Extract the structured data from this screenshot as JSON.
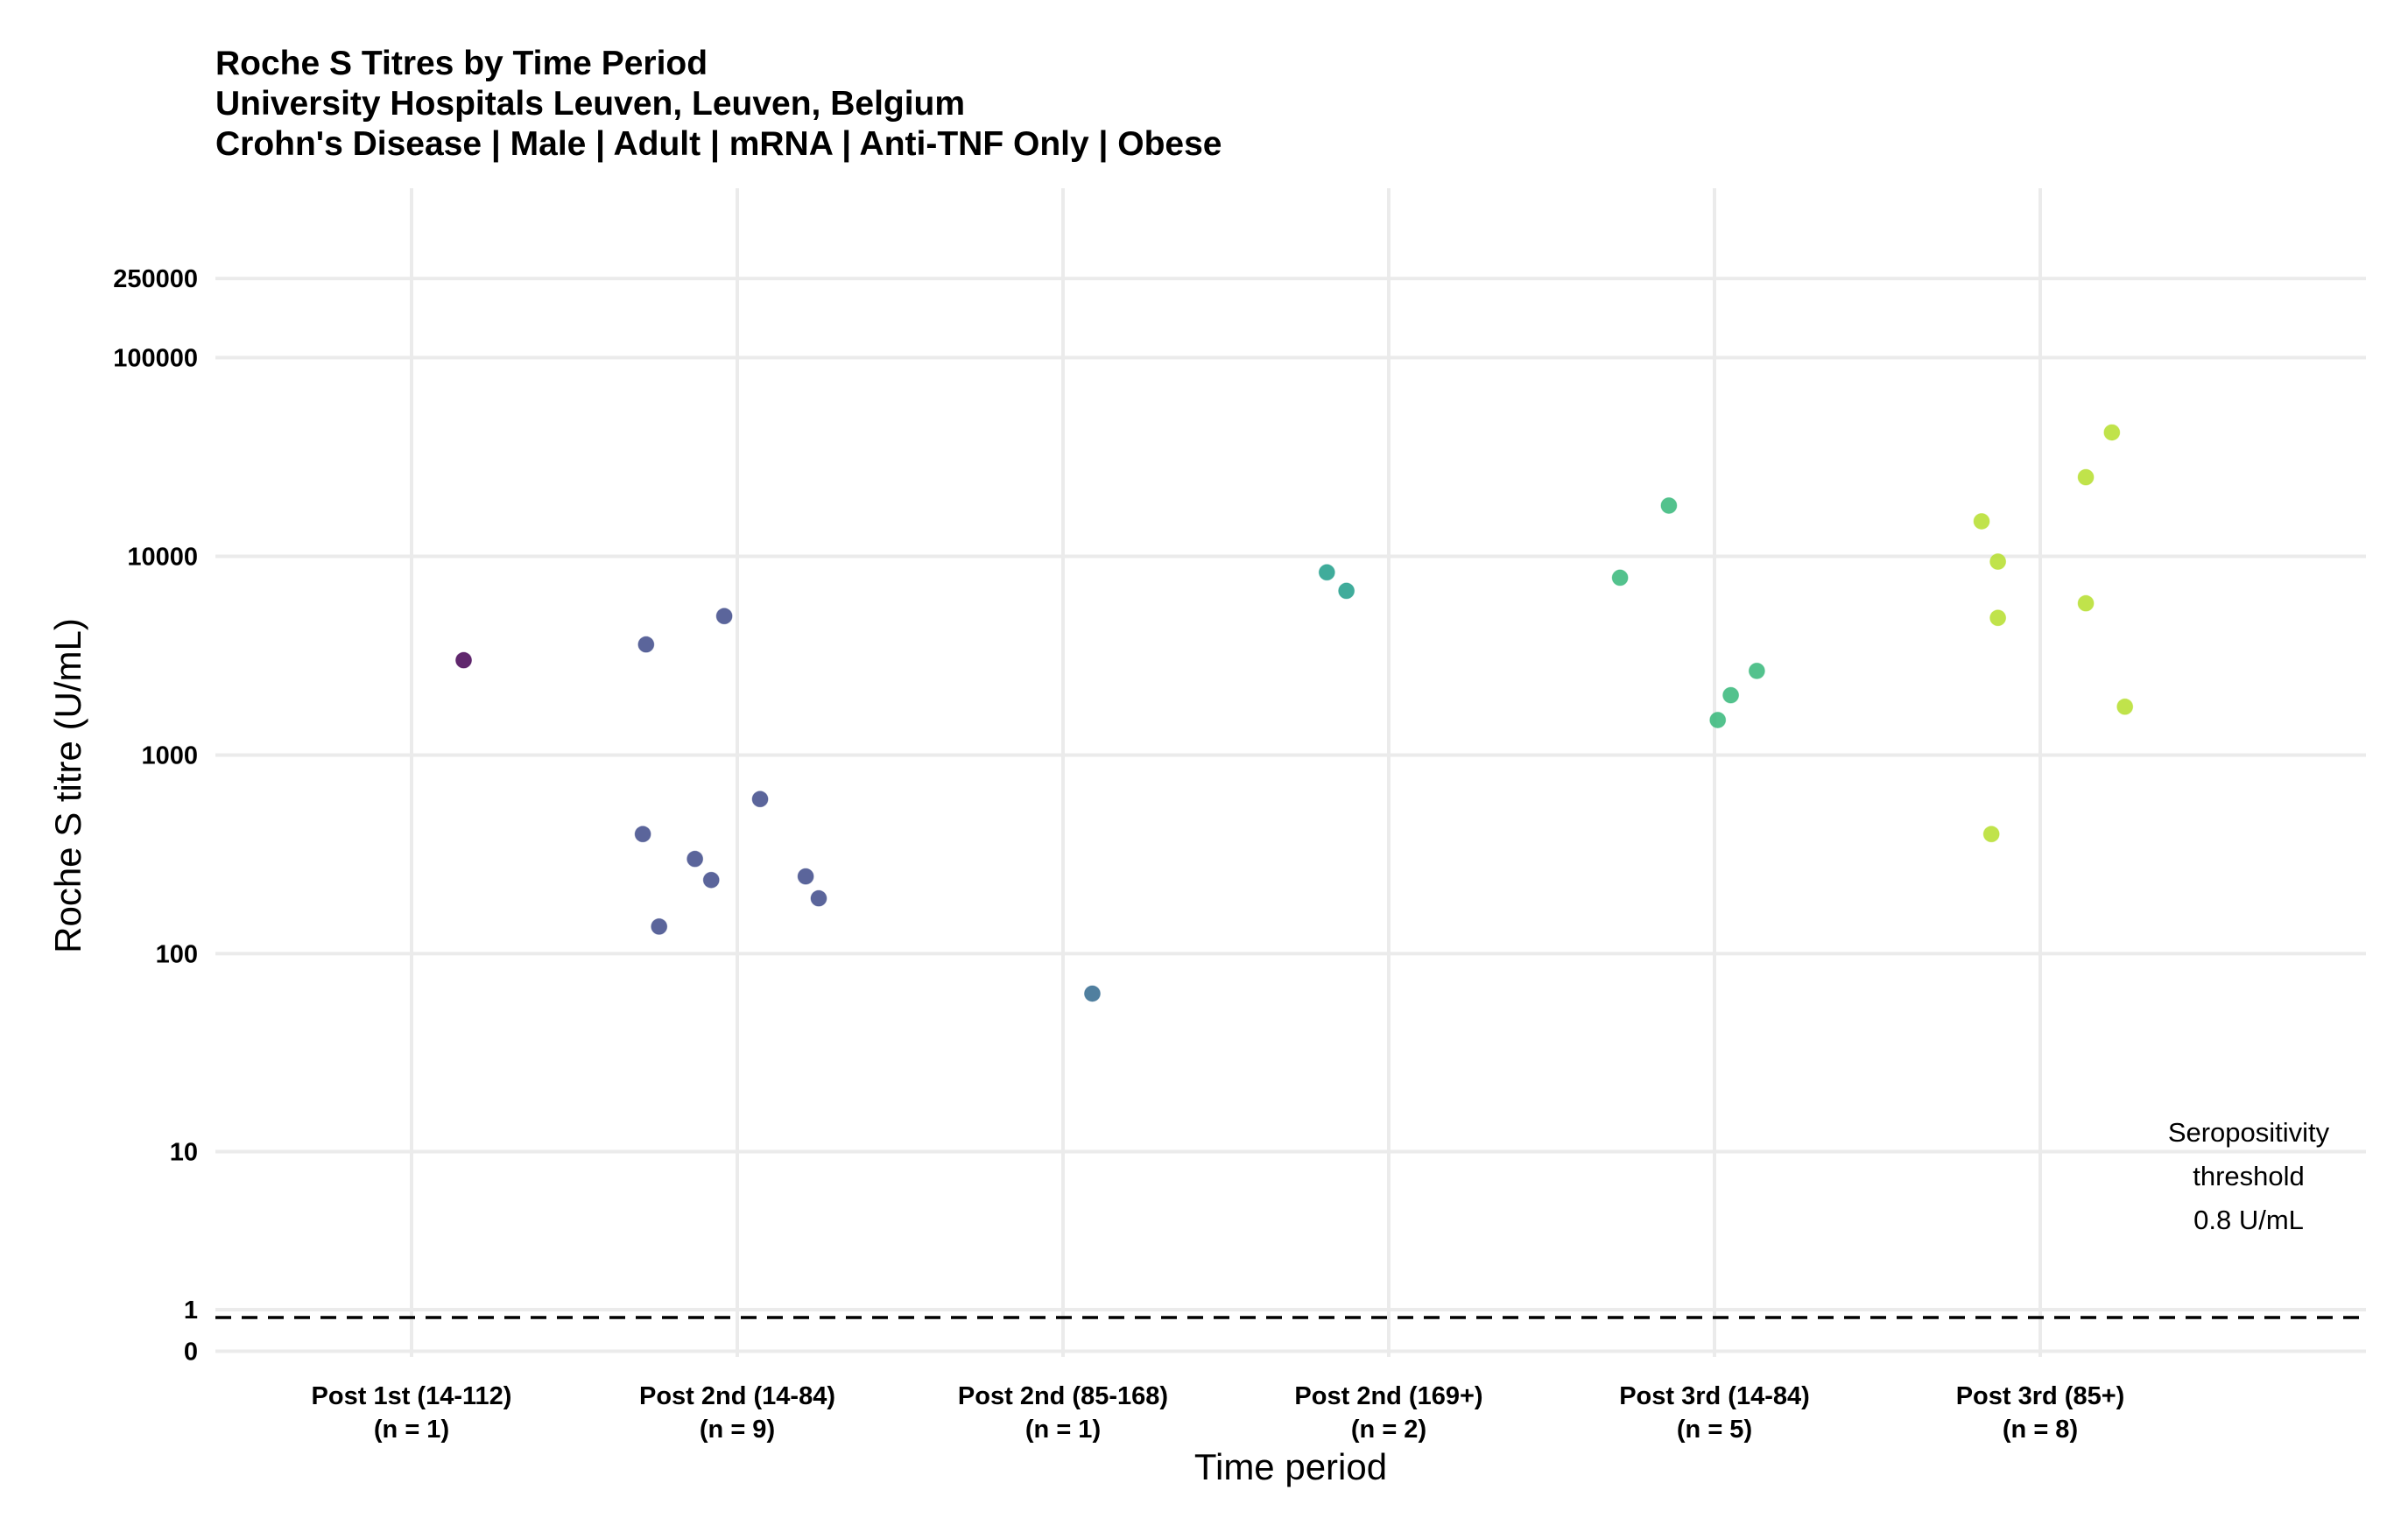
{
  "chart_data": {
    "type": "scatter",
    "title": "Roche S Titres by Time Period",
    "subtitle_lines": [
      "University Hospitals Leuven, Leuven, Belgium",
      "Crohn's Disease | Male | Adult | mRNA | Anti-TNF Only | Obese"
    ],
    "xlabel": "Time period",
    "ylabel": "Roche S titre (U/mL)",
    "y_scale": "pseudo-log",
    "ylim": [
      0,
      300000
    ],
    "y_ticks": [
      {
        "value": 0,
        "label": "0"
      },
      {
        "value": 1,
        "label": "1"
      },
      {
        "value": 10,
        "label": "10"
      },
      {
        "value": 100,
        "label": "100"
      },
      {
        "value": 1000,
        "label": "1000"
      },
      {
        "value": 10000,
        "label": "10000"
      },
      {
        "value": 100000,
        "label": "100000"
      },
      {
        "value": 250000,
        "label": "250000"
      }
    ],
    "categories": [
      {
        "label": "Post 1st (14-112)",
        "n_label": "(n = 1)",
        "color": "#440154"
      },
      {
        "label": "Post 2nd (14-84)",
        "n_label": "(n = 9)",
        "color": "#3E4A89"
      },
      {
        "label": "Post 2nd (85-168)",
        "n_label": "(n = 1)",
        "color": "#31688E"
      },
      {
        "label": "Post 2nd (169+)",
        "n_label": "(n = 2)",
        "color": "#1F9E89"
      },
      {
        "label": "Post 3rd (14-84)",
        "n_label": "(n = 5)",
        "color": "#35B779"
      },
      {
        "label": "Post 3rd (85+)",
        "n_label": "(n = 8)",
        "color": "#B5DE2B"
      }
    ],
    "points": [
      {
        "category": 0,
        "jitter": 0.16,
        "y": 3000
      },
      {
        "category": 1,
        "jitter": -0.28,
        "y": 3600
      },
      {
        "category": 1,
        "jitter": -0.04,
        "y": 5000
      },
      {
        "category": 1,
        "jitter": 0.07,
        "y": 600
      },
      {
        "category": 1,
        "jitter": -0.29,
        "y": 400
      },
      {
        "category": 1,
        "jitter": -0.13,
        "y": 300
      },
      {
        "category": 1,
        "jitter": -0.08,
        "y": 235
      },
      {
        "category": 1,
        "jitter": 0.21,
        "y": 245
      },
      {
        "category": 1,
        "jitter": 0.25,
        "y": 190
      },
      {
        "category": 1,
        "jitter": -0.24,
        "y": 137
      },
      {
        "category": 2,
        "jitter": 0.09,
        "y": 63
      },
      {
        "category": 3,
        "jitter": -0.19,
        "y": 8300
      },
      {
        "category": 3,
        "jitter": -0.13,
        "y": 6700
      },
      {
        "category": 4,
        "jitter": -0.29,
        "y": 7800
      },
      {
        "category": 4,
        "jitter": -0.14,
        "y": 18000
      },
      {
        "category": 4,
        "jitter": 0.05,
        "y": 2000
      },
      {
        "category": 4,
        "jitter": 0.13,
        "y": 2650
      },
      {
        "category": 4,
        "jitter": 0.01,
        "y": 1500
      },
      {
        "category": 5,
        "jitter": -0.18,
        "y": 15000
      },
      {
        "category": 5,
        "jitter": -0.13,
        "y": 9400
      },
      {
        "category": 5,
        "jitter": -0.13,
        "y": 4900
      },
      {
        "category": 5,
        "jitter": -0.15,
        "y": 400
      },
      {
        "category": 5,
        "jitter": 0.14,
        "y": 25000
      },
      {
        "category": 5,
        "jitter": 0.22,
        "y": 42000
      },
      {
        "category": 5,
        "jitter": 0.14,
        "y": 5800
      },
      {
        "category": 5,
        "jitter": 0.26,
        "y": 1750
      }
    ],
    "threshold": {
      "value": 0.8,
      "style": "dashed",
      "label_lines": [
        "Seropositivity",
        "threshold",
        "0.8 U/mL"
      ]
    },
    "grid": true,
    "legend": "none"
  }
}
